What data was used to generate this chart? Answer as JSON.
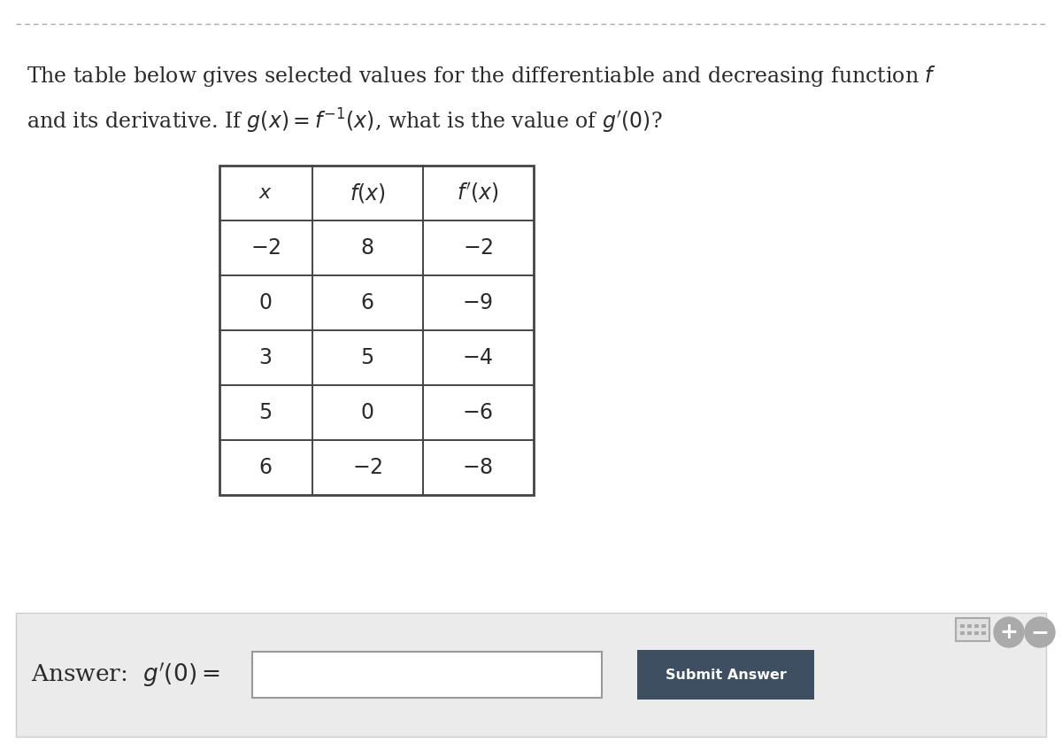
{
  "table_data": [
    [
      "-2",
      "8",
      "-2"
    ],
    [
      "0",
      "6",
      "-9"
    ],
    [
      "3",
      "5",
      "-4"
    ],
    [
      "5",
      "0",
      "-6"
    ],
    [
      "6",
      "-2",
      "-8"
    ]
  ],
  "submit_text": "Submit Answer",
  "bg_color": "#ffffff",
  "table_bg": "#ffffff",
  "bottom_panel_bg": "#ebebeb",
  "dashed_line_color": "#aaaaaa",
  "table_border_color": "#444444",
  "submit_btn_color": "#3d4f60",
  "submit_btn_text_color": "#ffffff",
  "icon_color": "#aaaaaa",
  "text_color": "#2a2a2a",
  "font_size_title": 17,
  "font_size_table": 16,
  "font_size_answer": 17
}
